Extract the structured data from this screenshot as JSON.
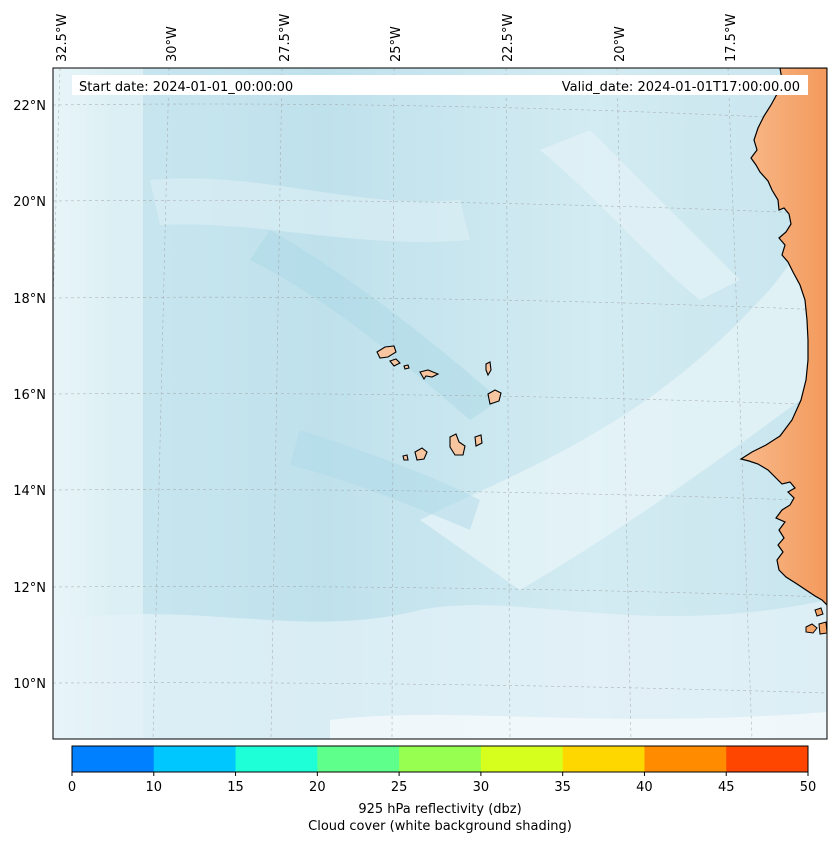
{
  "header": {
    "start_date": "Start date: 2024-01-01_00:00:00",
    "valid_date": "Valid_date: 2024-01-01T17:00:00.00"
  },
  "axes": {
    "lon_labels": [
      "32.5°W",
      "30°W",
      "27.5°W",
      "25°W",
      "22.5°W",
      "20°W",
      "17.5°W"
    ],
    "lat_labels": [
      "22°N",
      "20°N",
      "18°N",
      "16°N",
      "14°N",
      "12°N",
      "10°N"
    ]
  },
  "colorbar": {
    "ticks": [
      "0",
      "10",
      "15",
      "20",
      "25",
      "30",
      "35",
      "40",
      "45",
      "50"
    ],
    "colors": [
      "#0080ff",
      "#00c8ff",
      "#1effd8",
      "#5fff8c",
      "#96ff50",
      "#d6ff1e",
      "#ffd700",
      "#ff8c00",
      "#ff4600"
    ],
    "label_line1": "925 hPa reflectivity (dbz)",
    "label_line2": "Cloud cover (white background shading)"
  },
  "style": {
    "ocean_cloud_color": "#b8dfeb",
    "land_color": "#f4a56a",
    "island_color": "#f7c6a0"
  }
}
